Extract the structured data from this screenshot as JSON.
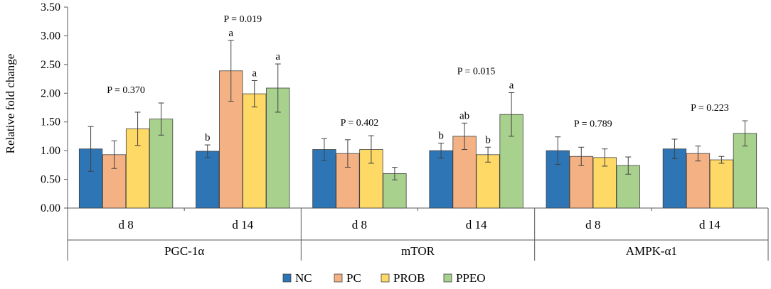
{
  "chart_data": {
    "type": "bar",
    "ylabel": "Relative fold change",
    "xlabel": "",
    "ylim": [
      0,
      3.5
    ],
    "yticks": [
      "0.00",
      "0.50",
      "1.00",
      "1.50",
      "2.00",
      "2.50",
      "3.00",
      "3.50"
    ],
    "grid": false,
    "legend_position": "bottom-center",
    "series_names": [
      "NC",
      "PC",
      "PROB",
      "PPEO"
    ],
    "colors": {
      "NC": "#2e75b6",
      "PC": "#f4b183",
      "PROB": "#ffd966",
      "PPEO": "#a9d18e"
    },
    "genes": [
      {
        "name": "PGC-1α",
        "days": [
          {
            "label": "d 8",
            "p_value": "P = 0.370",
            "values": [
              1.03,
              0.93,
              1.38,
              1.55
            ],
            "errors": [
              0.39,
              0.24,
              0.29,
              0.28
            ],
            "letters": [
              "",
              "",
              "",
              ""
            ]
          },
          {
            "label": "d 14",
            "p_value": "P = 0.019",
            "values": [
              0.99,
              2.39,
              1.99,
              2.09
            ],
            "errors": [
              0.11,
              0.53,
              0.23,
              0.42
            ],
            "letters": [
              "b",
              "a",
              "a",
              "a"
            ]
          }
        ]
      },
      {
        "name": "mTOR",
        "days": [
          {
            "label": "d 8",
            "p_value": "P = 0.402",
            "values": [
              1.02,
              0.95,
              1.02,
              0.6
            ],
            "errors": [
              0.19,
              0.24,
              0.24,
              0.11
            ],
            "letters": [
              "",
              "",
              "",
              ""
            ]
          },
          {
            "label": "d 14",
            "p_value": "P = 0.015",
            "values": [
              1.0,
              1.25,
              0.93,
              1.63
            ],
            "errors": [
              0.13,
              0.23,
              0.13,
              0.38
            ],
            "letters": [
              "b",
              "ab",
              "b",
              "a"
            ]
          }
        ]
      },
      {
        "name": "AMPK-α1",
        "days": [
          {
            "label": "d 8",
            "p_value": "P = 0.789",
            "values": [
              1.0,
              0.9,
              0.88,
              0.74
            ],
            "errors": [
              0.24,
              0.16,
              0.15,
              0.15
            ],
            "letters": [
              "",
              "",
              "",
              ""
            ]
          },
          {
            "label": "d 14",
            "p_value": "P = 0.223",
            "values": [
              1.03,
              0.95,
              0.84,
              1.3
            ],
            "errors": [
              0.17,
              0.13,
              0.06,
              0.22
            ],
            "letters": [
              "",
              "",
              "",
              ""
            ]
          }
        ]
      }
    ]
  }
}
